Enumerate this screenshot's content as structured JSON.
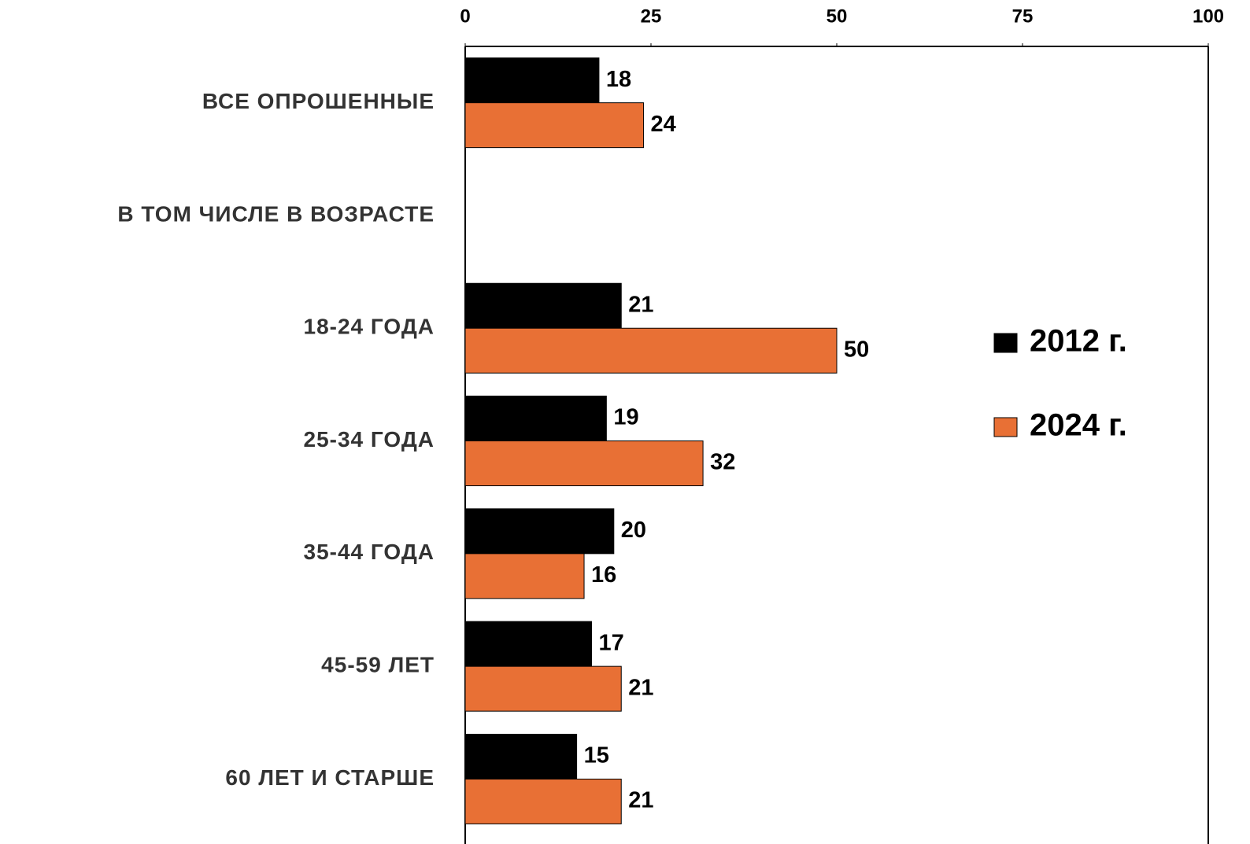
{
  "chart_data": {
    "type": "bar",
    "orientation": "horizontal",
    "categories": [
      "ВСЕ ОПРОШЕННЫЕ",
      "В ТОМ ЧИСЛЕ В ВОЗРАСТЕ",
      "18-24 ГОДА",
      "25-34 ГОДА",
      "35-44 ГОДА",
      "45-59 ЛЕТ",
      "60 ЛЕТ И СТАРШЕ"
    ],
    "series": [
      {
        "name": "2012 г.",
        "color": "#000000",
        "values": [
          18,
          null,
          21,
          19,
          20,
          17,
          15
        ]
      },
      {
        "name": "2024 г.",
        "color": "#e87035",
        "values": [
          24,
          null,
          50,
          32,
          16,
          21,
          21
        ]
      }
    ],
    "xlim": [
      0,
      100
    ],
    "xticks": [
      0,
      25,
      50,
      75,
      100
    ],
    "legend": "right"
  }
}
